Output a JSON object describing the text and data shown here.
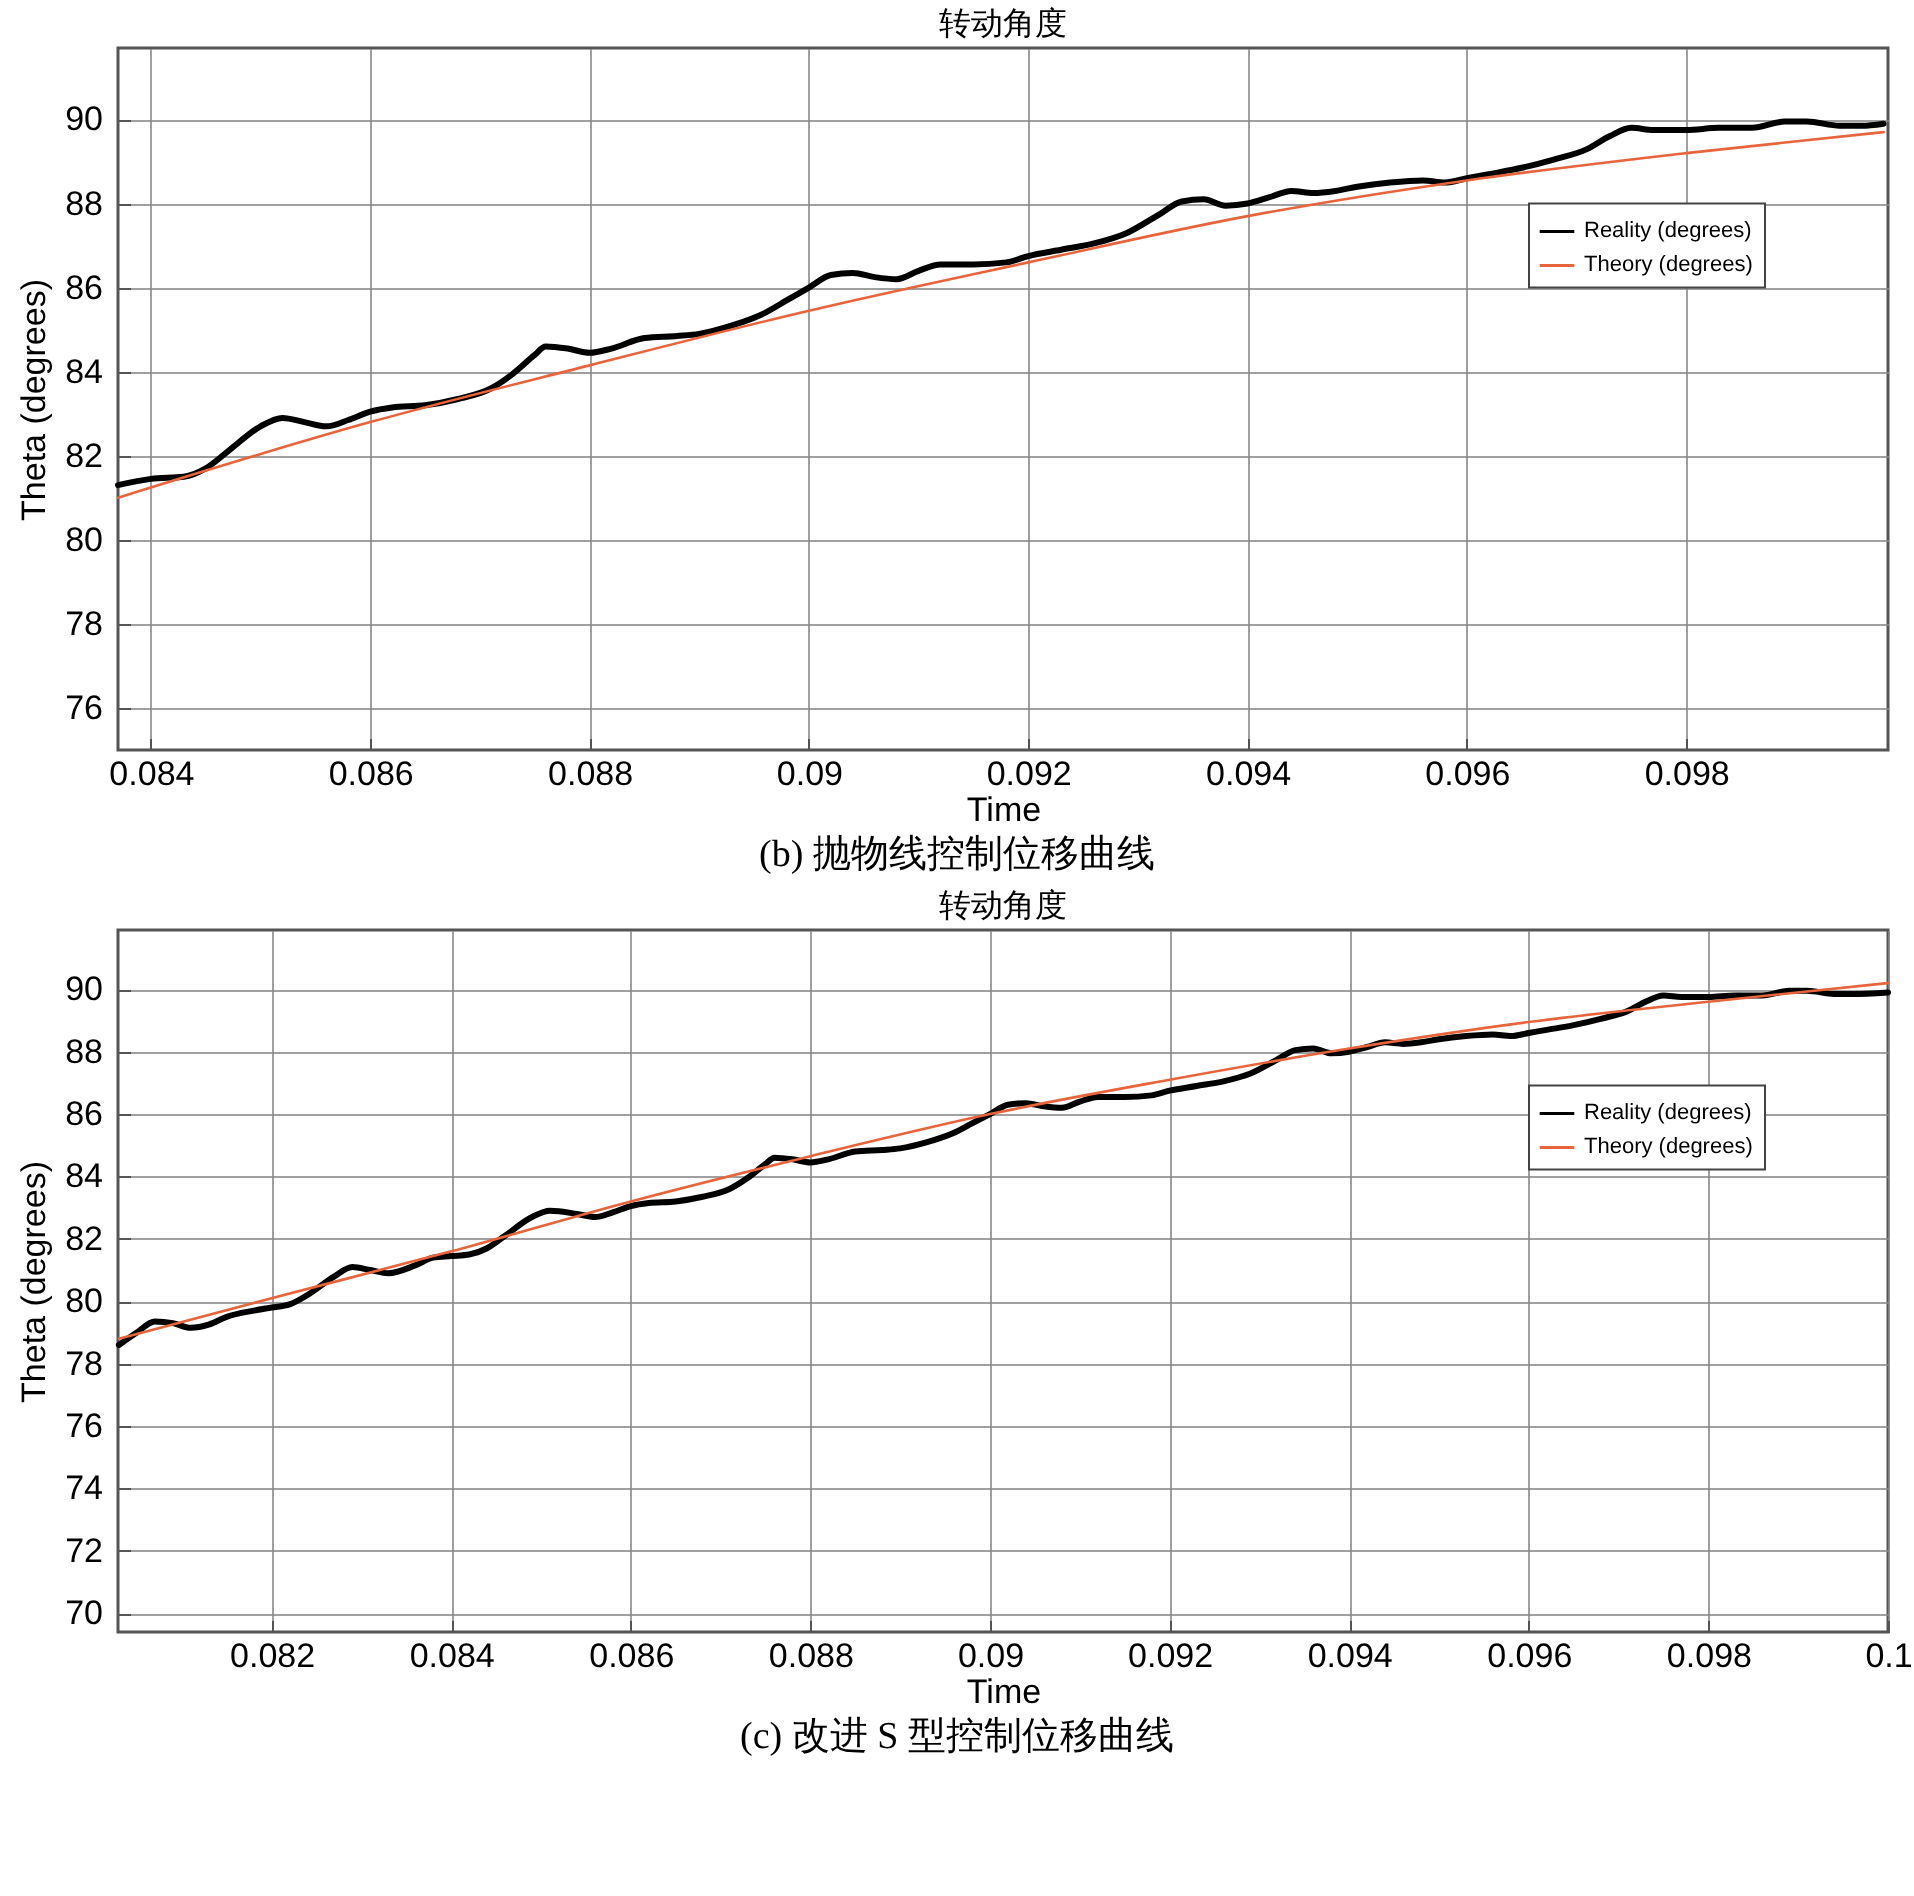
{
  "chart_data": [
    {
      "type": "line",
      "title": "转动角度",
      "xlabel": "Time",
      "ylabel": "Theta (degrees)",
      "annotations": [
        "(b)  抛物线控制位移曲线"
      ],
      "xlim": [
        0.0837,
        0.09984
      ],
      "xticks": [
        0.084,
        0.086,
        0.088,
        0.09,
        0.092,
        0.094,
        0.096,
        0.098
      ],
      "ylim": [
        75,
        91.7
      ],
      "yticks": [
        76,
        78,
        80,
        82,
        84,
        86,
        88,
        90
      ],
      "grid": true,
      "legend": "right",
      "series": [
        {
          "name": "Reality (degrees)",
          "color": "#000000",
          "x": [
            0.0837,
            0.084,
            0.0843,
            0.0845,
            0.0847,
            0.085,
            0.0852,
            0.0854,
            0.0856,
            0.0858,
            0.086,
            0.0862,
            0.0865,
            0.0868,
            0.0871,
            0.0873,
            0.0875,
            0.0876,
            0.0878,
            0.088,
            0.0882,
            0.0885,
            0.0888,
            0.089,
            0.0893,
            0.0896,
            0.0898,
            0.09,
            0.0902,
            0.0904,
            0.0906,
            0.0908,
            0.091,
            0.0912,
            0.0915,
            0.0918,
            0.092,
            0.0923,
            0.0926,
            0.0929,
            0.0932,
            0.0934,
            0.0936,
            0.0938,
            0.094,
            0.0942,
            0.0944,
            0.0946,
            0.0948,
            0.095,
            0.0953,
            0.0956,
            0.0958,
            0.096,
            0.0962,
            0.0965,
            0.0968,
            0.0971,
            0.0973,
            0.0975,
            0.0977,
            0.098,
            0.0983,
            0.0986,
            0.0989,
            0.0991,
            0.0994,
            0.0996,
            0.0998
          ],
          "values": [
            81.3,
            81.45,
            81.5,
            81.7,
            82.1,
            82.7,
            82.9,
            82.8,
            82.7,
            82.85,
            83.05,
            83.15,
            83.2,
            83.35,
            83.6,
            83.95,
            84.4,
            84.6,
            84.55,
            84.45,
            84.55,
            84.8,
            84.85,
            84.9,
            85.1,
            85.4,
            85.7,
            86.0,
            86.3,
            86.35,
            86.25,
            86.2,
            86.4,
            86.55,
            86.55,
            86.6,
            86.75,
            86.9,
            87.05,
            87.3,
            87.75,
            88.05,
            88.1,
            87.95,
            88.0,
            88.15,
            88.3,
            88.25,
            88.3,
            88.4,
            88.5,
            88.55,
            88.5,
            88.6,
            88.7,
            88.85,
            89.05,
            89.3,
            89.6,
            89.8,
            89.75,
            89.75,
            89.8,
            89.8,
            89.95,
            89.95,
            89.85,
            89.85,
            89.9
          ]
        },
        {
          "name": "Theory (degrees)",
          "color": "#e8643c",
          "x": [
            0.0837,
            0.086,
            0.088,
            0.09,
            0.092,
            0.094,
            0.096,
            0.098,
            0.0998
          ],
          "values": [
            81.0,
            82.8,
            84.15,
            85.45,
            86.6,
            87.7,
            88.55,
            89.2,
            89.7
          ]
        }
      ]
    },
    {
      "type": "line",
      "title": "转动角度",
      "xlabel": "Time",
      "ylabel": "Theta (degrees)",
      "annotations": [
        "(c)  改进 S 型控制位移曲线"
      ],
      "xlim": [
        0.08029,
        0.1
      ],
      "xticks": [
        0.082,
        0.084,
        0.086,
        0.088,
        0.09,
        0.092,
        0.094,
        0.096,
        0.098,
        0.1
      ],
      "ylim": [
        69.4,
        91.9
      ],
      "yticks": [
        70,
        72,
        74,
        76,
        78,
        80,
        82,
        84,
        86,
        88,
        90
      ],
      "grid": true,
      "legend": "right",
      "series": [
        {
          "name": "Reality (degrees)",
          "color": "#000000",
          "x": [
            0.0803,
            0.0805,
            0.0807,
            0.0809,
            0.0811,
            0.0813,
            0.0815,
            0.0818,
            0.082,
            0.0822,
            0.0824,
            0.0827,
            0.0829,
            0.0831,
            0.0833,
            0.0836,
            0.0838,
            0.084,
            0.0842,
            0.0844,
            0.0846,
            0.0849,
            0.0851,
            0.0854,
            0.0856,
            0.0858,
            0.086,
            0.0862,
            0.0865,
            0.0868,
            0.0871,
            0.0873,
            0.0875,
            0.0876,
            0.0878,
            0.088,
            0.0882,
            0.0885,
            0.0888,
            0.089,
            0.0893,
            0.0896,
            0.0898,
            0.09,
            0.0902,
            0.0904,
            0.0906,
            0.0908,
            0.091,
            0.0912,
            0.0915,
            0.0918,
            0.092,
            0.0923,
            0.0926,
            0.0929,
            0.0932,
            0.0934,
            0.0936,
            0.0938,
            0.094,
            0.0942,
            0.0944,
            0.0946,
            0.0948,
            0.095,
            0.0953,
            0.0956,
            0.0958,
            0.096,
            0.0962,
            0.0965,
            0.0968,
            0.0971,
            0.0973,
            0.0975,
            0.0977,
            0.098,
            0.0983,
            0.0986,
            0.0989,
            0.0991,
            0.0994,
            0.0996,
            0.1
          ],
          "values": [
            78.6,
            79.0,
            79.35,
            79.3,
            79.15,
            79.25,
            79.5,
            79.7,
            79.8,
            79.9,
            80.2,
            80.8,
            81.1,
            81.0,
            80.9,
            81.15,
            81.4,
            81.45,
            81.5,
            81.7,
            82.1,
            82.7,
            82.9,
            82.8,
            82.7,
            82.85,
            83.05,
            83.15,
            83.2,
            83.35,
            83.6,
            83.95,
            84.4,
            84.6,
            84.55,
            84.45,
            84.55,
            84.8,
            84.85,
            84.9,
            85.1,
            85.4,
            85.7,
            86.0,
            86.3,
            86.35,
            86.25,
            86.2,
            86.4,
            86.55,
            86.55,
            86.6,
            86.75,
            86.9,
            87.05,
            87.3,
            87.75,
            88.05,
            88.1,
            87.95,
            88.0,
            88.15,
            88.3,
            88.25,
            88.3,
            88.4,
            88.5,
            88.55,
            88.5,
            88.6,
            88.7,
            88.85,
            89.05,
            89.3,
            89.6,
            89.8,
            89.75,
            89.75,
            89.8,
            89.8,
            89.95,
            89.95,
            89.85,
            89.85,
            89.9
          ]
        },
        {
          "name": "Theory (degrees)",
          "color": "#e8643c",
          "x": [
            0.0803,
            0.082,
            0.084,
            0.086,
            0.088,
            0.09,
            0.092,
            0.094,
            0.096,
            0.098,
            0.1
          ],
          "values": [
            78.8,
            80.1,
            81.6,
            83.2,
            84.65,
            86.0,
            87.1,
            88.1,
            88.95,
            89.6,
            90.2
          ]
        }
      ]
    }
  ]
}
